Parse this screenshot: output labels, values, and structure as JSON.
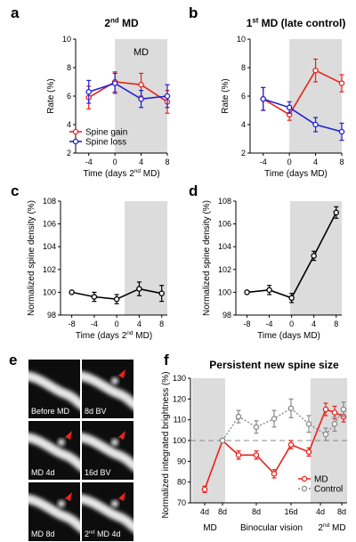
{
  "chart_data": [
    {
      "panel": "a",
      "type": "line",
      "title": "2nd MD",
      "title_parts": [
        "2",
        "nd",
        " MD"
      ],
      "shade_label": "MD",
      "xlabel_parts": [
        "Time (days 2",
        "nd",
        " MD)"
      ],
      "ylabel": "Rate (%)",
      "xlim": [
        -6,
        8
      ],
      "ylim": [
        2,
        10
      ],
      "xticks": [
        -4,
        0,
        4,
        8
      ],
      "yticks": [
        2,
        4,
        6,
        8,
        10
      ],
      "shade_from": 0,
      "legend": "bottom-left",
      "series": [
        {
          "name": "Spine gain",
          "color": "#e8231c",
          "x": [
            -4,
            0,
            4,
            8
          ],
          "y": [
            5.9,
            7.0,
            6.8,
            5.6
          ],
          "err": [
            0.8,
            0.7,
            0.8,
            0.8
          ]
        },
        {
          "name": "Spine loss",
          "color": "#1f1fd6",
          "x": [
            -4,
            0,
            4,
            8
          ],
          "y": [
            6.3,
            6.9,
            5.8,
            6.0
          ],
          "err": [
            0.8,
            0.7,
            0.6,
            0.8
          ]
        }
      ]
    },
    {
      "panel": "b",
      "type": "line",
      "title": "1st MD (late control)",
      "title_parts": [
        "1",
        "st",
        " MD (late control)"
      ],
      "xlabel": "Time (days MD)",
      "ylabel": "Rate (%)",
      "xlim": [
        -6,
        8
      ],
      "ylim": [
        2,
        10
      ],
      "xticks": [
        -4,
        0,
        4,
        8
      ],
      "yticks": [
        2,
        4,
        6,
        8,
        10
      ],
      "shade_from": 0,
      "series": [
        {
          "name": "Spine gain",
          "color": "#e8231c",
          "x": [
            -4,
            0,
            4,
            8
          ],
          "y": [
            5.8,
            4.7,
            7.8,
            6.9
          ],
          "err": [
            0.8,
            0.4,
            0.8,
            0.6
          ]
        },
        {
          "name": "Spine loss",
          "color": "#1f1fd6",
          "x": [
            -4,
            0,
            4,
            8
          ],
          "y": [
            5.8,
            5.2,
            4.0,
            3.5
          ],
          "err": [
            0.8,
            0.4,
            0.5,
            0.6
          ]
        }
      ]
    },
    {
      "panel": "c",
      "type": "line",
      "xlabel_parts": [
        "Time (days 2",
        "nd",
        " MD)"
      ],
      "ylabel": "Normalized spine density (%)",
      "xlim": [
        -10,
        9
      ],
      "ylim": [
        98,
        108
      ],
      "xticks": [
        -8,
        -4,
        0,
        4,
        8
      ],
      "yticks": [
        98,
        100,
        102,
        104,
        106,
        108
      ],
      "shade_from": 1,
      "series": [
        {
          "name": "",
          "color": "#000000",
          "x": [
            -8,
            -4,
            0,
            4,
            8
          ],
          "y": [
            100.0,
            99.6,
            99.4,
            100.3,
            99.9
          ],
          "err": [
            0.0,
            0.4,
            0.4,
            0.6,
            0.7
          ]
        }
      ]
    },
    {
      "panel": "d",
      "type": "line",
      "xlabel": "Time (days MD)",
      "ylabel": "Normalized spine density (%)",
      "xlim": [
        -10,
        9
      ],
      "ylim": [
        98,
        108
      ],
      "xticks": [
        -8,
        -4,
        0,
        4,
        8
      ],
      "yticks": [
        98,
        100,
        102,
        104,
        106,
        108
      ],
      "shade_from": 1,
      "series": [
        {
          "name": "",
          "color": "#000000",
          "x": [
            -8,
            -4,
            0,
            4,
            8
          ],
          "y": [
            100.0,
            100.2,
            99.5,
            103.2,
            107.0
          ],
          "err": [
            0.0,
            0.4,
            0.4,
            0.4,
            0.5
          ]
        }
      ]
    },
    {
      "panel": "f",
      "type": "line",
      "title": "Persistent new spine size",
      "ylabel": "Normalized integrated brightness (%)",
      "ylim": [
        70,
        130
      ],
      "yticks": [
        70,
        80,
        90,
        100,
        110,
        120,
        130
      ],
      "reference_line": 100,
      "legend": "bottom-right",
      "x_tick_labels": [
        "4d",
        "8d",
        "8d",
        "16d",
        "4d",
        "8d"
      ],
      "x_group_labels": [
        "MD",
        "Binocular vision",
        "2nd MD"
      ],
      "x_group_label_parts": [
        [
          "MD"
        ],
        [
          "Binocular vision"
        ],
        [
          "2",
          "nd",
          " MD"
        ]
      ],
      "series": [
        {
          "name": "MD",
          "color": "#e8231c",
          "x": [
            1,
            2,
            3,
            4,
            5,
            6,
            7,
            8,
            9,
            10
          ],
          "y": [
            76.5,
            100.0,
            93.0,
            93.0,
            84.0,
            98.0,
            94.5,
            115.0,
            113.5,
            111.5
          ],
          "err": [
            1.5,
            0.0,
            2.0,
            2.0,
            2.0,
            2.0,
            2.0,
            3.0,
            3.0,
            2.5
          ]
        },
        {
          "name": "Control",
          "color": "#888888",
          "x": [
            2,
            3,
            4,
            5,
            6,
            7,
            8,
            9,
            10
          ],
          "y": [
            100.0,
            111.5,
            106.5,
            110.5,
            115.5,
            108.0,
            103.0,
            108.0,
            115.0
          ],
          "err": [
            0.0,
            3.0,
            3.0,
            4.0,
            4.5,
            4.0,
            3.0,
            3.5,
            3.5
          ]
        }
      ]
    }
  ],
  "panel_labels": [
    "a",
    "b",
    "c",
    "d",
    "e",
    "f"
  ],
  "images": {
    "panel": "e",
    "captions": [
      "Before MD",
      "8d BV",
      "MD 4d",
      "16d BV",
      "MD 8d",
      "2nd MD 4d"
    ],
    "caption_last_parts": [
      "2",
      "nd",
      " MD 4d"
    ],
    "arrow_color": "#e8231c"
  }
}
